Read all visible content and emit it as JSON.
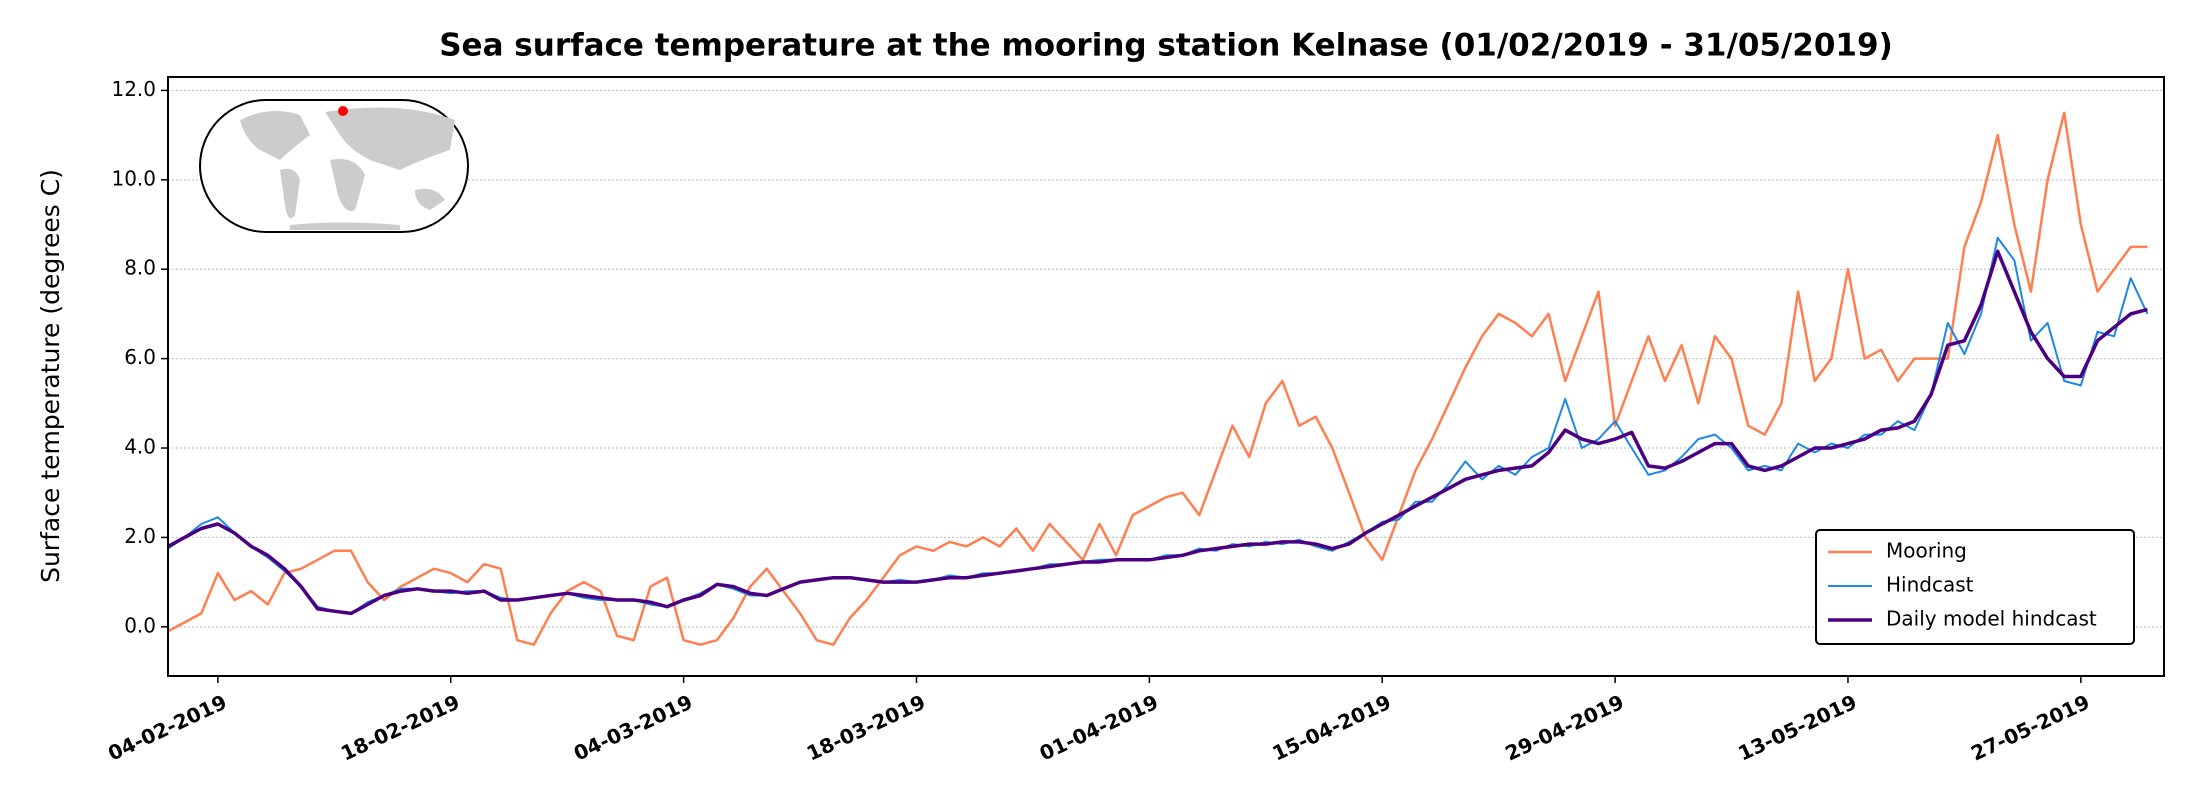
{
  "chart_data": {
    "type": "line",
    "title": "Sea surface temperature at the mooring station Kelnase (01/02/2019 - 31/05/2019)",
    "y_label": "Surface temperature (degrees C)",
    "legend": "lower right",
    "grid": true,
    "x": [
      "2019-02-01",
      "2019-02-02",
      "2019-02-03",
      "2019-02-04",
      "2019-02-05",
      "2019-02-06",
      "2019-02-07",
      "2019-02-08",
      "2019-02-09",
      "2019-02-10",
      "2019-02-11",
      "2019-02-12",
      "2019-02-13",
      "2019-02-14",
      "2019-02-15",
      "2019-02-16",
      "2019-02-17",
      "2019-02-18",
      "2019-02-19",
      "2019-02-20",
      "2019-02-21",
      "2019-02-22",
      "2019-02-23",
      "2019-02-24",
      "2019-02-25",
      "2019-02-26",
      "2019-02-27",
      "2019-02-28",
      "2019-03-01",
      "2019-03-02",
      "2019-03-03",
      "2019-03-04",
      "2019-03-05",
      "2019-03-06",
      "2019-03-07",
      "2019-03-08",
      "2019-03-09",
      "2019-03-10",
      "2019-03-11",
      "2019-03-12",
      "2019-03-13",
      "2019-03-14",
      "2019-03-15",
      "2019-03-16",
      "2019-03-17",
      "2019-03-18",
      "2019-03-19",
      "2019-03-20",
      "2019-03-21",
      "2019-03-22",
      "2019-03-23",
      "2019-03-24",
      "2019-03-25",
      "2019-03-26",
      "2019-03-27",
      "2019-03-28",
      "2019-03-29",
      "2019-03-30",
      "2019-03-31",
      "2019-04-01",
      "2019-04-02",
      "2019-04-03",
      "2019-04-04",
      "2019-04-05",
      "2019-04-06",
      "2019-04-07",
      "2019-04-08",
      "2019-04-09",
      "2019-04-10",
      "2019-04-11",
      "2019-04-12",
      "2019-04-13",
      "2019-04-14",
      "2019-04-15",
      "2019-04-16",
      "2019-04-17",
      "2019-04-18",
      "2019-04-19",
      "2019-04-20",
      "2019-04-21",
      "2019-04-22",
      "2019-04-23",
      "2019-04-24",
      "2019-04-25",
      "2019-04-26",
      "2019-04-27",
      "2019-04-28",
      "2019-04-29",
      "2019-04-30",
      "2019-05-01",
      "2019-05-02",
      "2019-05-03",
      "2019-05-04",
      "2019-05-05",
      "2019-05-06",
      "2019-05-07",
      "2019-05-08",
      "2019-05-09",
      "2019-05-10",
      "2019-05-11",
      "2019-05-12",
      "2019-05-13",
      "2019-05-14",
      "2019-05-15",
      "2019-05-16",
      "2019-05-17",
      "2019-05-18",
      "2019-05-19",
      "2019-05-20",
      "2019-05-21",
      "2019-05-22",
      "2019-05-23",
      "2019-05-24",
      "2019-05-25",
      "2019-05-26",
      "2019-05-27",
      "2019-05-28",
      "2019-05-29",
      "2019-05-30",
      "2019-05-31"
    ],
    "series": [
      {
        "name": "Mooring",
        "color": "#ff7f50",
        "width": 2.5,
        "values": [
          -0.1,
          0.1,
          0.3,
          1.2,
          0.6,
          0.8,
          0.5,
          1.2,
          1.3,
          1.5,
          1.7,
          1.7,
          1.0,
          0.6,
          0.9,
          1.1,
          1.3,
          1.2,
          1.0,
          1.4,
          1.3,
          -0.3,
          -0.4,
          0.3,
          0.8,
          1.0,
          0.8,
          -0.2,
          -0.3,
          0.9,
          1.1,
          -0.3,
          -0.4,
          -0.3,
          0.2,
          0.9,
          1.3,
          0.8,
          0.3,
          -0.3,
          -0.4,
          0.2,
          0.6,
          1.1,
          1.6,
          1.8,
          1.7,
          1.9,
          1.8,
          2.0,
          1.8,
          2.2,
          1.7,
          2.3,
          1.9,
          1.5,
          2.3,
          1.6,
          2.5,
          2.7,
          2.9,
          3.0,
          2.5,
          3.5,
          4.5,
          3.8,
          5.0,
          5.5,
          4.5,
          4.7,
          4.0,
          3.0,
          2.0,
          1.5,
          2.5,
          3.5,
          4.2,
          5.0,
          5.8,
          6.5,
          7.0,
          6.8,
          6.5,
          7.0,
          5.5,
          6.5,
          7.5,
          4.5,
          5.5,
          6.5,
          5.5,
          6.3,
          5.0,
          6.5,
          6.0,
          4.5,
          4.3,
          5.0,
          7.5,
          5.5,
          6.0,
          8.0,
          6.0,
          6.2,
          5.5,
          6.0,
          6.0,
          6.0,
          8.5,
          9.5,
          11.0,
          9.0,
          7.5,
          10.0,
          11.5,
          9.0,
          7.5,
          8.0,
          8.5,
          8.5
        ]
      },
      {
        "name": "Hindcast",
        "color": "#1e88e5",
        "width": 2,
        "values": [
          1.75,
          2.0,
          2.3,
          2.45,
          2.1,
          1.8,
          1.55,
          1.25,
          0.9,
          0.45,
          0.35,
          0.3,
          0.55,
          0.7,
          0.85,
          0.85,
          0.8,
          0.75,
          0.8,
          0.8,
          0.65,
          0.6,
          0.65,
          0.7,
          0.75,
          0.65,
          0.6,
          0.6,
          0.6,
          0.5,
          0.45,
          0.6,
          0.75,
          0.95,
          0.85,
          0.7,
          0.7,
          0.85,
          1.0,
          1.05,
          1.1,
          1.1,
          1.05,
          1.0,
          1.05,
          1.0,
          1.05,
          1.15,
          1.1,
          1.2,
          1.2,
          1.25,
          1.3,
          1.4,
          1.4,
          1.45,
          1.5,
          1.5,
          1.5,
          1.5,
          1.6,
          1.6,
          1.75,
          1.7,
          1.85,
          1.8,
          1.9,
          1.85,
          1.95,
          1.8,
          1.7,
          1.9,
          2.1,
          2.35,
          2.4,
          2.8,
          2.8,
          3.2,
          3.7,
          3.3,
          3.6,
          3.4,
          3.8,
          4.0,
          5.1,
          4.0,
          4.2,
          4.6,
          4.0,
          3.4,
          3.5,
          3.8,
          4.2,
          4.3,
          4.0,
          3.5,
          3.6,
          3.5,
          4.1,
          3.9,
          4.1,
          4.0,
          4.3,
          4.3,
          4.6,
          4.4,
          5.2,
          6.8,
          6.1,
          7.0,
          8.7,
          8.2,
          6.4,
          6.8,
          5.5,
          5.4,
          6.6,
          6.5,
          7.8,
          7.0
        ]
      },
      {
        "name": "Daily model hindcast",
        "color": "#4b0082",
        "width": 3.5,
        "values": [
          1.8,
          2.0,
          2.2,
          2.3,
          2.1,
          1.8,
          1.6,
          1.3,
          0.9,
          0.4,
          0.35,
          0.3,
          0.5,
          0.7,
          0.8,
          0.85,
          0.8,
          0.8,
          0.75,
          0.8,
          0.6,
          0.6,
          0.65,
          0.7,
          0.75,
          0.7,
          0.65,
          0.6,
          0.6,
          0.55,
          0.45,
          0.6,
          0.7,
          0.95,
          0.9,
          0.75,
          0.7,
          0.85,
          1.0,
          1.05,
          1.1,
          1.1,
          1.05,
          1.0,
          1.0,
          1.0,
          1.05,
          1.1,
          1.1,
          1.15,
          1.2,
          1.25,
          1.3,
          1.35,
          1.4,
          1.45,
          1.45,
          1.5,
          1.5,
          1.5,
          1.55,
          1.6,
          1.7,
          1.75,
          1.8,
          1.85,
          1.85,
          1.9,
          1.9,
          1.85,
          1.75,
          1.85,
          2.1,
          2.3,
          2.5,
          2.7,
          2.9,
          3.1,
          3.3,
          3.4,
          3.5,
          3.55,
          3.6,
          3.9,
          4.4,
          4.2,
          4.1,
          4.2,
          4.35,
          3.6,
          3.55,
          3.7,
          3.9,
          4.1,
          4.1,
          3.6,
          3.5,
          3.6,
          3.8,
          4.0,
          4.0,
          4.1,
          4.2,
          4.4,
          4.45,
          4.6,
          5.2,
          6.3,
          6.4,
          7.2,
          8.4,
          7.5,
          6.6,
          6.0,
          5.6,
          5.6,
          6.4,
          6.7,
          7.0,
          7.1
        ]
      }
    ],
    "xlim": [
      "2019-02-01",
      "2019-06-01"
    ],
    "xticks": [
      {
        "value": "2019-02-04",
        "label": "04-02-2019"
      },
      {
        "value": "2019-02-18",
        "label": "18-02-2019"
      },
      {
        "value": "2019-03-04",
        "label": "04-03-2019"
      },
      {
        "value": "2019-03-18",
        "label": "18-03-2019"
      },
      {
        "value": "2019-04-01",
        "label": "01-04-2019"
      },
      {
        "value": "2019-04-15",
        "label": "15-04-2019"
      },
      {
        "value": "2019-04-29",
        "label": "29-04-2019"
      },
      {
        "value": "2019-05-13",
        "label": "13-05-2019"
      },
      {
        "value": "2019-05-27",
        "label": "27-05-2019"
      }
    ],
    "ylim": [
      -1.1,
      12.3
    ],
    "yticks": [
      {
        "value": 0,
        "label": "0.0"
      },
      {
        "value": 2,
        "label": "2.0"
      },
      {
        "value": 4,
        "label": "4.0"
      },
      {
        "value": 6,
        "label": "6.0"
      },
      {
        "value": 8,
        "label": "8.0"
      },
      {
        "value": 10,
        "label": "10.0"
      },
      {
        "value": 12,
        "label": "12.0"
      }
    ]
  }
}
